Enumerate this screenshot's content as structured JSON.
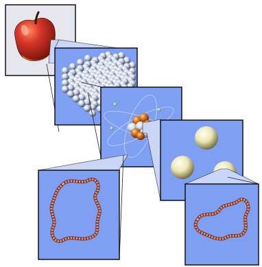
{
  "diagram": {
    "panels": [
      {
        "subject": "apple"
      },
      {
        "subject": "crystal-lattice"
      },
      {
        "subject": "atom"
      },
      {
        "subject": "quarks"
      },
      {
        "subject": "string-loop-1"
      },
      {
        "subject": "string-loop-2"
      }
    ],
    "colors": {
      "panel_fill": "#7f9ff2",
      "apple_panel_fill": "#e6e6ee",
      "connector_fill": "#c9d6f8",
      "apple_red": "#b02418",
      "nucleus_orange": "#d0701e",
      "string_pink": "#e89a8c",
      "quark_cream": "#f2edc0"
    }
  }
}
